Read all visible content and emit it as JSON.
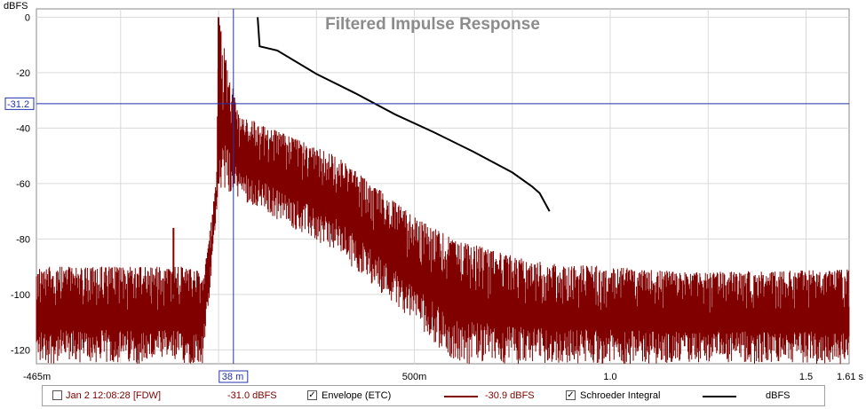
{
  "chart_data": {
    "type": "line",
    "title": "Filtered Impulse Response",
    "ylabel": "dBFS",
    "xlim": [
      -0.465,
      1.61
    ],
    "ylim": [
      -125,
      3
    ],
    "y_ticks": [
      0,
      -20,
      -40,
      -60,
      -80,
      -100,
      -120
    ],
    "y_tick_labels": [
      "0",
      "-20",
      "-40",
      "-60",
      "-80",
      "-100",
      "-120"
    ],
    "x_ticks": [
      -0.465,
      0.5,
      1.0,
      1.5,
      1.61
    ],
    "x_tick_labels": [
      "-465m",
      "500m",
      "1.0",
      "1.5",
      "1.61 s"
    ],
    "grid": true,
    "colors": {
      "impulse": "#800000",
      "schroeder": "#000000",
      "cursor": "#2233aa"
    },
    "cursor": {
      "x": 0.038,
      "x_label": "38 m",
      "y": -31.2,
      "y_label": "-31.2"
    },
    "series": [
      {
        "name": "Envelope (ETC)",
        "noise_floor_db": -112,
        "peak": {
          "x": 0.0,
          "y": 0
        },
        "peak2": {
          "x": 0.04,
          "y": -29
        },
        "envelope_points": [
          {
            "x": -0.465,
            "upper": -90,
            "lower": -125
          },
          {
            "x": -0.06,
            "upper": -90,
            "lower": -125
          },
          {
            "x": -0.04,
            "upper": -95,
            "lower": -125
          },
          {
            "x": -0.025,
            "upper": -80,
            "lower": -105
          },
          {
            "x": -0.005,
            "upper": -58,
            "lower": -70
          },
          {
            "x": 0.0,
            "upper": 0,
            "lower": -62
          },
          {
            "x": 0.05,
            "upper": -35,
            "lower": -65
          },
          {
            "x": 0.3,
            "upper": -50,
            "lower": -85
          },
          {
            "x": 0.5,
            "upper": -72,
            "lower": -110
          },
          {
            "x": 0.6,
            "upper": -80,
            "lower": -125
          },
          {
            "x": 0.8,
            "upper": -88,
            "lower": -125
          },
          {
            "x": 1.2,
            "upper": -92,
            "lower": -125
          },
          {
            "x": 1.61,
            "upper": -91,
            "lower": -125
          }
        ]
      },
      {
        "name": "Schroeder Integral",
        "x": [
          0.1,
          0.105,
          0.15,
          0.25,
          0.35,
          0.45,
          0.55,
          0.65,
          0.75,
          0.8,
          0.82,
          0.845
        ],
        "y": [
          0,
          -10.5,
          -12,
          -20.5,
          -27.5,
          -35,
          -41.5,
          -48.5,
          -56,
          -61,
          -63.5,
          -70
        ]
      }
    ]
  },
  "legend": {
    "timestamp_label": "Jan 2 12:08:28 [FDW]",
    "value1": "-31.0 dBFS",
    "envelope_label": "Envelope (ETC)",
    "value2": "-30.9 dBFS",
    "schroeder_label": "Schroeder Integral",
    "unit": "dBFS",
    "checked_mark": "✓"
  }
}
